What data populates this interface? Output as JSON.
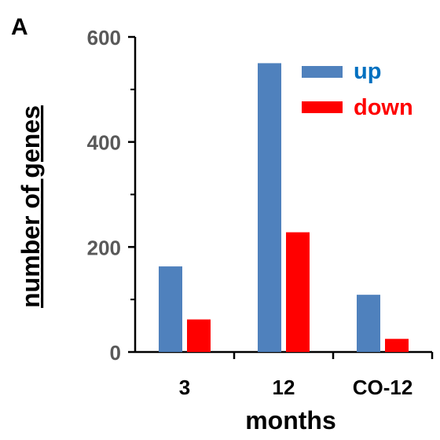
{
  "panel_label": "A",
  "chart_data": {
    "type": "bar",
    "categories": [
      "3",
      "12",
      "CO-12"
    ],
    "series": [
      {
        "name": "up",
        "values": [
          163,
          550,
          109
        ],
        "color": "#4F81BD",
        "label_color": "#0070C0"
      },
      {
        "name": "down",
        "values": [
          62,
          228,
          25
        ],
        "color": "#FF0000",
        "label_color": "#FF0000"
      }
    ],
    "xlabel": "months",
    "ylabel": "number of genes",
    "ylim": [
      0,
      600
    ],
    "yticks": [
      0,
      200,
      400,
      600
    ],
    "grid": false,
    "legend_position": "top-right"
  }
}
